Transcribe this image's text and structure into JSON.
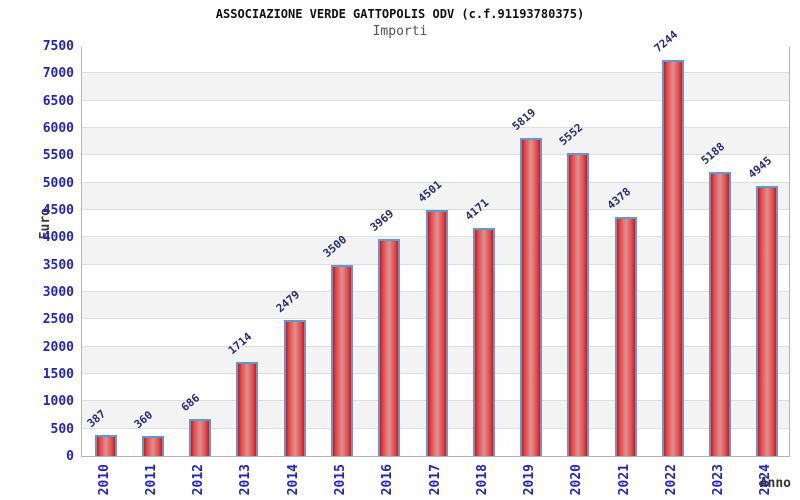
{
  "header": {
    "title": "ASSOCIAZIONE VERDE GATTOPOLIS ODV (c.f.91193780375)",
    "subtitle": "Importi"
  },
  "chart_data": {
    "type": "bar",
    "title": "ASSOCIAZIONE VERDE GATTOPOLIS ODV (c.f.91193780375)",
    "subtitle": "Importi",
    "xlabel": "Anno",
    "ylabel": "Euro",
    "categories": [
      "2010",
      "2011",
      "2012",
      "2013",
      "2014",
      "2015",
      "2016",
      "2017",
      "2018",
      "2019",
      "2020",
      "2021",
      "2022",
      "2023",
      "2024"
    ],
    "values": [
      387,
      360,
      686,
      1714,
      2479,
      3500,
      3969,
      4501,
      4171,
      5819,
      5552,
      4378,
      7244,
      5188,
      4945
    ],
    "ylim": [
      0,
      7500
    ],
    "ytick_step": 500,
    "grid": "horizontal",
    "legend": "none",
    "colors": {
      "bar_fill_edge": "#de1212",
      "bar_fill_center": "#d89595",
      "bar_border": "#5b9bd5",
      "tick_label": "#2222cc",
      "value_label": "#2b2b78",
      "band_gray": "#f3f3f3",
      "band_white": "#ffffff",
      "gridline": "#dedede",
      "plot_border": "#b5b5b5",
      "title_color": "#111111",
      "subtitle_color": "#555555",
      "axis_title_color": "#3c3c3c"
    }
  }
}
